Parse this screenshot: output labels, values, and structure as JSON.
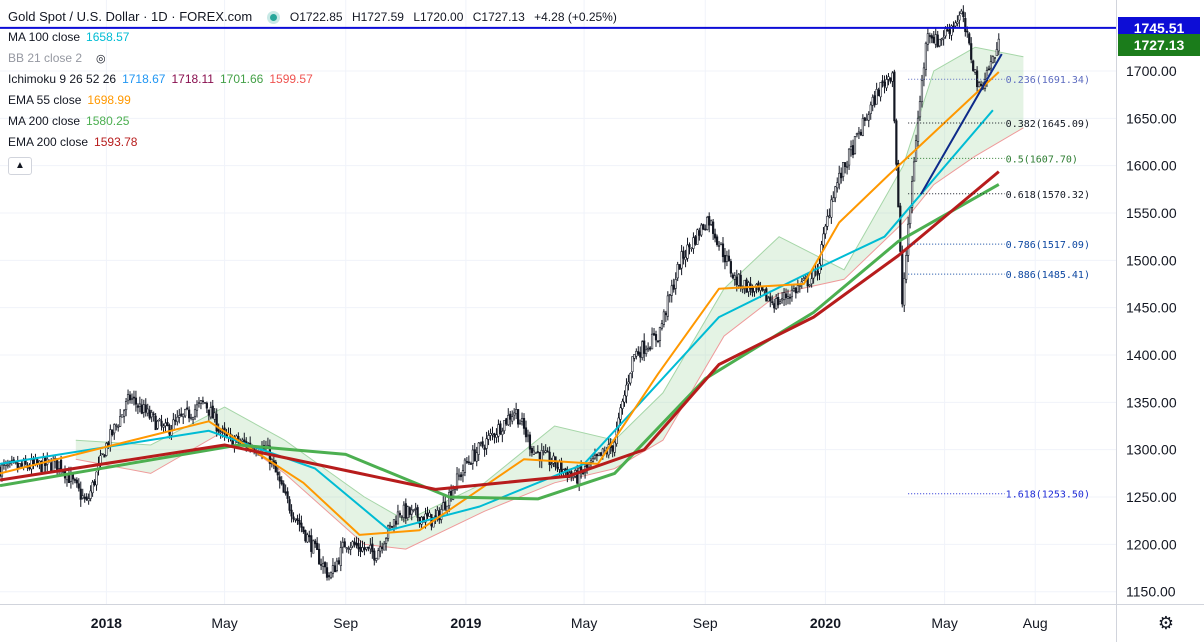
{
  "legend": {
    "symbol": "Gold Spot / U.S. Dollar · 1D · FOREX.com",
    "ohlc": {
      "o": "O1722.85",
      "h": "H1727.59",
      "l": "L1720.00",
      "c": "C1727.13",
      "chg": "+4.28 (+0.25%)"
    },
    "indicators": [
      {
        "label": "MA 100 close",
        "values": [
          "1658.57"
        ],
        "colors": [
          "#00bcd4"
        ]
      },
      {
        "label": "BB 21 close 2",
        "values": [],
        "colors": [],
        "muted": true
      },
      {
        "label": "Ichimoku 9 26 52 26",
        "values": [
          "1718.67",
          "1718.11",
          "1701.66",
          "1599.57"
        ],
        "colors": [
          "#2196f3",
          "#880e4f",
          "#43a047",
          "#ef5350"
        ]
      },
      {
        "label": "EMA 55 close",
        "values": [
          "1698.99"
        ],
        "colors": [
          "#ff9800"
        ]
      },
      {
        "label": "MA 200 close",
        "values": [
          "1580.25"
        ],
        "colors": [
          "#4caf50"
        ]
      },
      {
        "label": "EMA 200 close",
        "values": [
          "1593.78"
        ],
        "colors": [
          "#b71c1c"
        ]
      }
    ],
    "collapse_icon": "chevron-up-icon"
  },
  "price_tags": {
    "hline": {
      "value": "1745.51",
      "color": "#0d0dd6"
    },
    "last": {
      "value": "1727.13",
      "color": "#1b7c1b"
    }
  },
  "settings_icon": "gear-icon",
  "chart_data": {
    "type": "candlestick",
    "title": "Gold Spot / U.S. Dollar · 1D · FOREX.com",
    "y_ticks": [
      1150,
      1200,
      1250,
      1300,
      1350,
      1400,
      1450,
      1500,
      1550,
      1600,
      1650,
      1700
    ],
    "ylim": [
      1137,
      1775
    ],
    "x_ticks": [
      "2018",
      "May",
      "Sep",
      "2019",
      "May",
      "Sep",
      "2020",
      "May",
      "Aug"
    ],
    "x_tick_dates": [
      "2018-01-01",
      "2018-05-01",
      "2018-09-01",
      "2019-01-01",
      "2019-05-01",
      "2019-09-01",
      "2020-01-01",
      "2020-05-01",
      "2020-08-01"
    ],
    "xlim": [
      "2017-09-15",
      "2020-10-22"
    ],
    "grid": true,
    "horizontal_line": 1745.51,
    "price_path": [
      [
        "2017-09-15",
        1280
      ],
      [
        "2017-11-15",
        1285
      ],
      [
        "2017-12-12",
        1243
      ],
      [
        "2018-01-01",
        1305
      ],
      [
        "2018-01-25",
        1355
      ],
      [
        "2018-03-01",
        1320
      ],
      [
        "2018-04-11",
        1350
      ],
      [
        "2018-05-01",
        1312
      ],
      [
        "2018-06-13",
        1300
      ],
      [
        "2018-07-01",
        1250
      ],
      [
        "2018-08-16",
        1165
      ],
      [
        "2018-09-01",
        1203
      ],
      [
        "2018-10-01",
        1190
      ],
      [
        "2018-10-26",
        1235
      ],
      [
        "2018-12-01",
        1225
      ],
      [
        "2019-01-01",
        1285
      ],
      [
        "2019-02-20",
        1342
      ],
      [
        "2019-03-10",
        1300
      ],
      [
        "2019-04-23",
        1270
      ],
      [
        "2019-05-31",
        1305
      ],
      [
        "2019-06-20",
        1400
      ],
      [
        "2019-07-15",
        1420
      ],
      [
        "2019-08-07",
        1500
      ],
      [
        "2019-09-04",
        1545
      ],
      [
        "2019-10-01",
        1480
      ],
      [
        "2019-11-12",
        1455
      ],
      [
        "2019-12-23",
        1485
      ],
      [
        "2020-01-08",
        1570
      ],
      [
        "2020-02-24",
        1680
      ],
      [
        "2020-03-09",
        1700
      ],
      [
        "2020-03-19",
        1455
      ],
      [
        "2020-04-01",
        1620
      ],
      [
        "2020-04-14",
        1745
      ],
      [
        "2020-04-23",
        1730
      ],
      [
        "2020-05-18",
        1760
      ],
      [
        "2020-06-05",
        1680
      ],
      [
        "2020-06-25",
        1727
      ]
    ],
    "series": [
      {
        "name": "MA 100 close",
        "color": "#00bcd4",
        "points": [
          [
            "2017-09-15",
            1285
          ],
          [
            "2018-04-15",
            1320
          ],
          [
            "2018-08-01",
            1280
          ],
          [
            "2018-10-15",
            1215
          ],
          [
            "2019-01-15",
            1240
          ],
          [
            "2019-05-01",
            1285
          ],
          [
            "2019-09-15",
            1440
          ],
          [
            "2019-12-31",
            1495
          ],
          [
            "2020-03-01",
            1525
          ],
          [
            "2020-06-19",
            1658.57
          ]
        ]
      },
      {
        "name": "EMA 55 close",
        "color": "#ff9800",
        "points": [
          [
            "2017-09-15",
            1275
          ],
          [
            "2018-04-15",
            1330
          ],
          [
            "2018-07-20",
            1265
          ],
          [
            "2018-09-15",
            1210
          ],
          [
            "2018-11-15",
            1215
          ],
          [
            "2019-03-01",
            1290
          ],
          [
            "2019-05-15",
            1285
          ],
          [
            "2019-07-15",
            1380
          ],
          [
            "2019-09-15",
            1470
          ],
          [
            "2019-12-10",
            1475
          ],
          [
            "2020-01-15",
            1540
          ],
          [
            "2020-03-05",
            1590
          ],
          [
            "2020-06-25",
            1698.99
          ]
        ]
      },
      {
        "name": "MA 200 close",
        "color": "#4caf50",
        "points": [
          [
            "2017-09-15",
            1262
          ],
          [
            "2018-05-15",
            1305
          ],
          [
            "2018-09-01",
            1295
          ],
          [
            "2018-12-15",
            1250
          ],
          [
            "2019-03-15",
            1248
          ],
          [
            "2019-06-01",
            1275
          ],
          [
            "2019-09-01",
            1375
          ],
          [
            "2019-12-20",
            1445
          ],
          [
            "2020-03-15",
            1520
          ],
          [
            "2020-06-25",
            1580.25
          ]
        ]
      },
      {
        "name": "EMA 200 close",
        "color": "#b71c1c",
        "points": [
          [
            "2017-09-15",
            1268
          ],
          [
            "2018-05-01",
            1305
          ],
          [
            "2018-09-15",
            1275
          ],
          [
            "2018-12-01",
            1258
          ],
          [
            "2019-04-15",
            1272
          ],
          [
            "2019-07-01",
            1300
          ],
          [
            "2019-09-15",
            1390
          ],
          [
            "2019-12-20",
            1440
          ],
          [
            "2020-03-15",
            1505
          ],
          [
            "2020-06-25",
            1593.78
          ]
        ]
      }
    ],
    "ichimoku_cloud": {
      "upper": [
        [
          "2017-12-01",
          1310
        ],
        [
          "2018-02-15",
          1305
        ],
        [
          "2018-05-01",
          1345
        ],
        [
          "2018-07-01",
          1310
        ],
        [
          "2018-09-20",
          1250
        ],
        [
          "2018-11-01",
          1225
        ],
        [
          "2019-01-20",
          1265
        ],
        [
          "2019-04-01",
          1325
        ],
        [
          "2019-06-01",
          1310
        ],
        [
          "2019-07-20",
          1360
        ],
        [
          "2019-09-20",
          1470
        ],
        [
          "2019-11-15",
          1525
        ],
        [
          "2020-01-20",
          1490
        ],
        [
          "2020-03-20",
          1600
        ],
        [
          "2020-04-20",
          1700
        ],
        [
          "2020-06-01",
          1725
        ],
        [
          "2020-07-20",
          1715
        ]
      ],
      "lower": [
        [
          "2017-12-01",
          1290
        ],
        [
          "2018-02-15",
          1275
        ],
        [
          "2018-05-01",
          1320
        ],
        [
          "2018-07-01",
          1275
        ],
        [
          "2018-09-20",
          1200
        ],
        [
          "2018-11-01",
          1195
        ],
        [
          "2019-01-20",
          1235
        ],
        [
          "2019-04-01",
          1265
        ],
        [
          "2019-06-01",
          1280
        ],
        [
          "2019-07-20",
          1310
        ],
        [
          "2019-09-20",
          1420
        ],
        [
          "2019-11-15",
          1465
        ],
        [
          "2020-01-20",
          1480
        ],
        [
          "2020-03-20",
          1540
        ],
        [
          "2020-04-20",
          1580
        ],
        [
          "2020-06-01",
          1610
        ],
        [
          "2020-07-20",
          1640
        ]
      ]
    },
    "trendline": {
      "color": "#0d2a8a",
      "from": [
        "2020-04-07",
        1570
      ],
      "to": [
        "2020-06-28",
        1718
      ]
    },
    "fibonacci": {
      "line_start": "2020-03-25",
      "line_end": "2020-07-01",
      "label_at": "2020-07-02",
      "levels": [
        {
          "label": "0.236(1691.34)",
          "price": 1691.34,
          "color": "#5c6bc0"
        },
        {
          "label": "0.382(1645.09)",
          "price": 1645.09,
          "color": "#131722"
        },
        {
          "label": "0.5(1607.70)",
          "price": 1607.7,
          "color": "#2e7d32"
        },
        {
          "label": "0.618(1570.32)",
          "price": 1570.32,
          "color": "#131722"
        },
        {
          "label": "0.786(1517.09)",
          "price": 1517.09,
          "color": "#0d47a1"
        },
        {
          "label": "0.886(1485.41)",
          "price": 1485.41,
          "color": "#0d47a1"
        },
        {
          "label": "1.618(1253.50)",
          "price": 1253.5,
          "color": "#1e2bd6"
        }
      ]
    }
  }
}
